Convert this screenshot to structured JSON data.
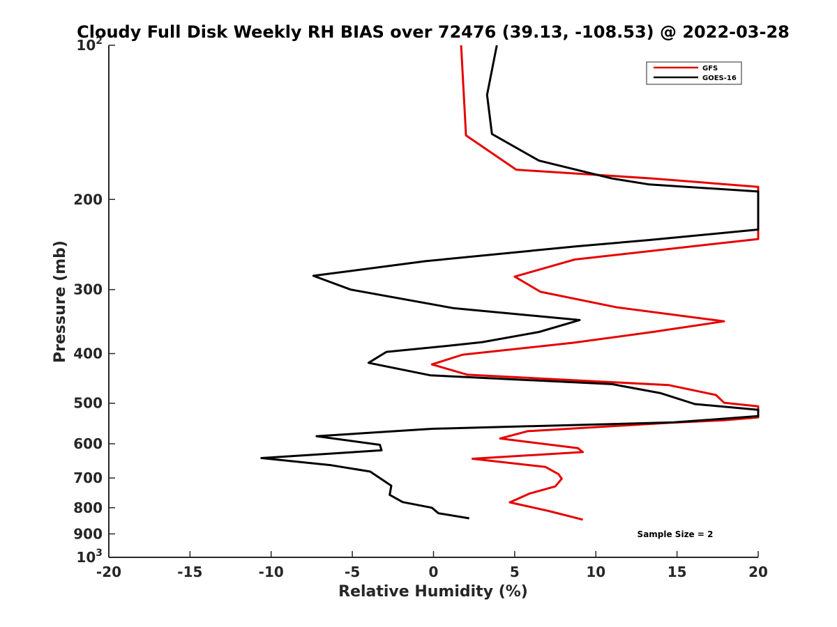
{
  "chart_data": {
    "type": "line",
    "title": "Cloudy Full Disk Weekly RH BIAS over 72476 (39.13, -108.53) @ 2022-03-28",
    "xlabel": "Relative Humidity (%)",
    "ylabel": "Pressure (mb)",
    "xlim": [
      -20,
      20
    ],
    "ylim": [
      100,
      1000
    ],
    "y_scale": "log",
    "y_reversed": true,
    "x_ticks": [
      "-20",
      "-15",
      "-10",
      "-5",
      "0",
      "5",
      "10",
      "15",
      "20"
    ],
    "y_ticks": [
      {
        "base": "10",
        "exp": "2"
      },
      {
        "base": "200",
        "exp": ""
      },
      {
        "base": "300",
        "exp": ""
      },
      {
        "base": "400",
        "exp": ""
      },
      {
        "base": "500",
        "exp": ""
      },
      {
        "base": "600",
        "exp": ""
      },
      {
        "base": "700",
        "exp": ""
      },
      {
        "base": "800",
        "exp": ""
      },
      {
        "base": "900",
        "exp": ""
      },
      {
        "base": "10",
        "exp": "3"
      }
    ],
    "grid": false,
    "legend_position": "top-right",
    "annotation": "Sample Size = 2",
    "series": [
      {
        "name": "GFS",
        "color": "#e60000",
        "points": [
          [
            1.7,
            100
          ],
          [
            2.0,
            150
          ],
          [
            5.1,
            175
          ],
          [
            13.5,
            182
          ],
          [
            20.0,
            189
          ],
          [
            20.0,
            239
          ],
          [
            8.7,
            262
          ],
          [
            5.0,
            283
          ],
          [
            6.6,
            303
          ],
          [
            11.3,
            325
          ],
          [
            17.9,
            346
          ],
          [
            13.5,
            363
          ],
          [
            8.6,
            381
          ],
          [
            1.8,
            402
          ],
          [
            -0.1,
            420
          ],
          [
            2.1,
            440
          ],
          [
            14.5,
            461
          ],
          [
            17.4,
            482
          ],
          [
            17.9,
            499
          ],
          [
            20.0,
            507
          ],
          [
            20.0,
            533
          ],
          [
            17.9,
            540
          ],
          [
            14.6,
            546
          ],
          [
            5.8,
            567
          ],
          [
            4.1,
            586
          ],
          [
            8.9,
            612
          ],
          [
            9.2,
            623
          ],
          [
            2.4,
            642
          ],
          [
            6.9,
            666
          ],
          [
            7.7,
            688
          ],
          [
            7.9,
            702
          ],
          [
            7.5,
            727
          ],
          [
            5.9,
            751
          ],
          [
            4.7,
            781
          ],
          [
            7.1,
            812
          ],
          [
            9.2,
            844
          ]
        ]
      },
      {
        "name": "GOES-16",
        "color": "#000000",
        "points": [
          [
            3.9,
            100
          ],
          [
            3.3,
            125
          ],
          [
            3.6,
            149
          ],
          [
            6.5,
            168
          ],
          [
            11.0,
            182
          ],
          [
            13.3,
            187
          ],
          [
            20.0,
            193
          ],
          [
            20.0,
            229
          ],
          [
            13.3,
            240
          ],
          [
            8.8,
            247
          ],
          [
            -0.5,
            264
          ],
          [
            -7.4,
            282
          ],
          [
            -5.1,
            300
          ],
          [
            1.2,
            326
          ],
          [
            9.0,
            344
          ],
          [
            6.5,
            363
          ],
          [
            3.0,
            380
          ],
          [
            1.0,
            386
          ],
          [
            -2.9,
            397
          ],
          [
            -4.0,
            417
          ],
          [
            -0.2,
            441
          ],
          [
            11.0,
            459
          ],
          [
            14.0,
            478
          ],
          [
            16.1,
            502
          ],
          [
            20.0,
            515
          ],
          [
            20.0,
            530
          ],
          [
            14.8,
            545
          ],
          [
            -0.1,
            561
          ],
          [
            -7.2,
            580
          ],
          [
            -3.3,
            603
          ],
          [
            -3.2,
            618
          ],
          [
            -10.6,
            640
          ],
          [
            -6.3,
            661
          ],
          [
            -3.9,
            680
          ],
          [
            -2.6,
            725
          ],
          [
            -2.7,
            755
          ],
          [
            -1.9,
            780
          ],
          [
            -0.1,
            800
          ],
          [
            0.3,
            820
          ],
          [
            2.2,
            839
          ]
        ]
      }
    ]
  }
}
